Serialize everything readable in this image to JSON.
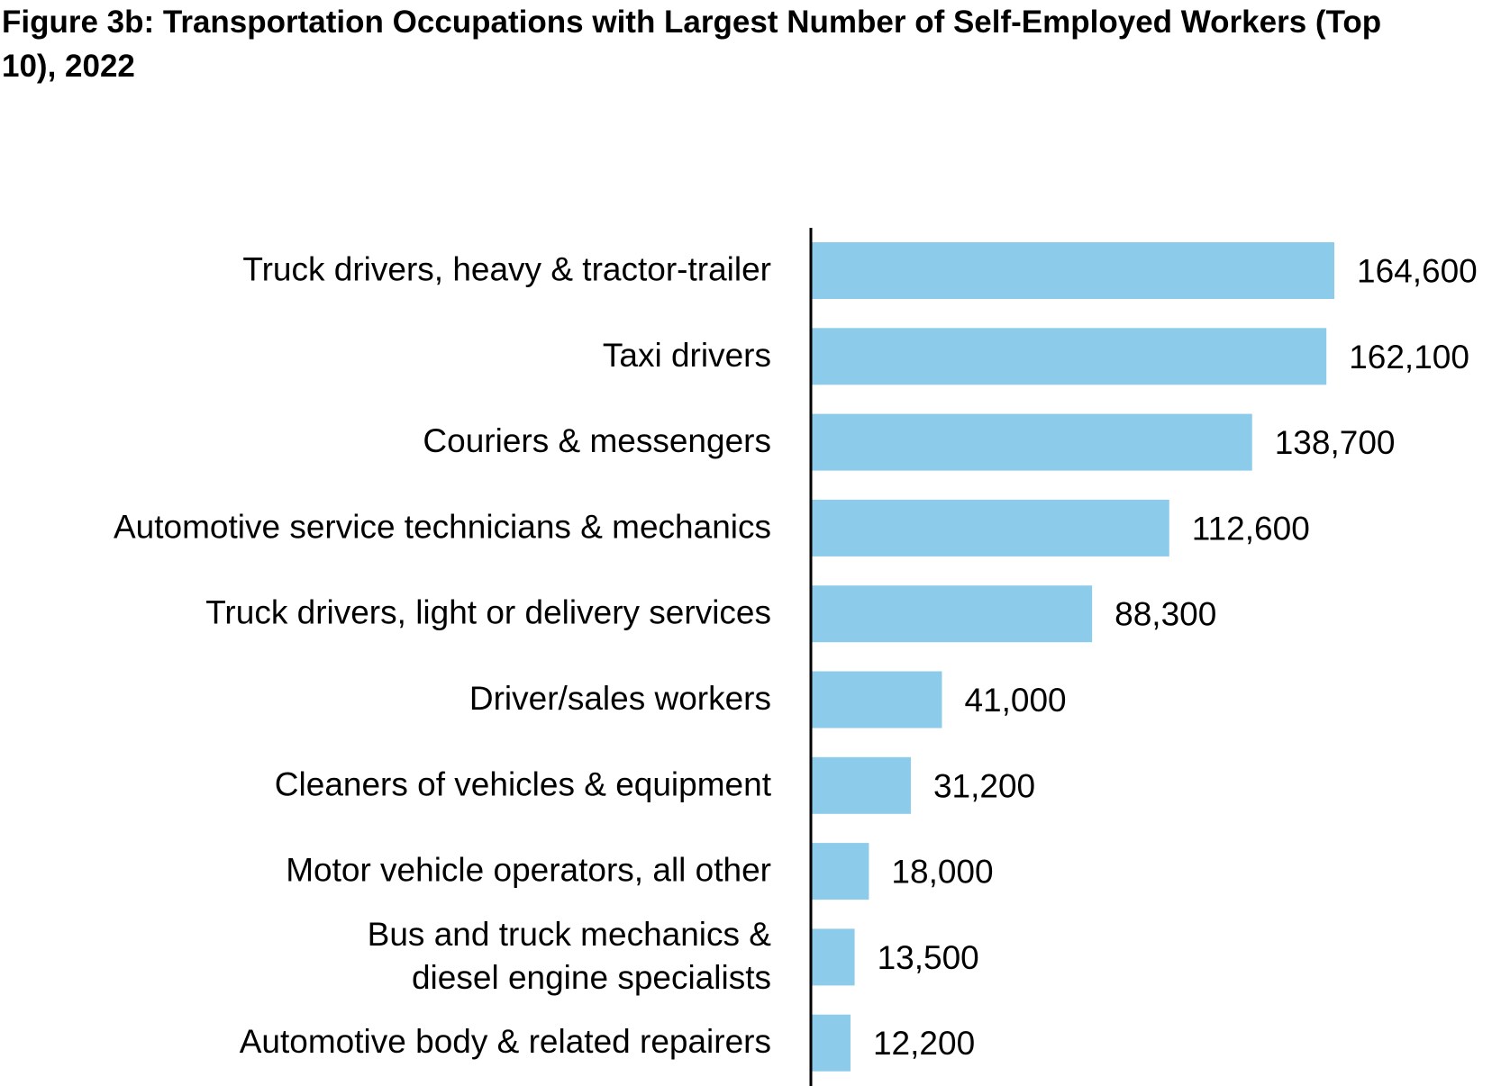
{
  "chart_data": {
    "type": "bar",
    "orientation": "horizontal",
    "title_parts": [
      "Figure 3b: Transportation Occupations with Largest ",
      "Number",
      " of Self-Employed Workers (Top 10), 2022"
    ],
    "categories": [
      [
        "Truck drivers, heavy & tractor-trailer"
      ],
      [
        "Taxi drivers"
      ],
      [
        "Couriers & messengers"
      ],
      [
        "Automotive service technicians & mechanics"
      ],
      [
        "Truck drivers, light or delivery services"
      ],
      [
        "Driver/sales workers"
      ],
      [
        "Cleaners of vehicles & equipment"
      ],
      [
        "Motor vehicle operators, all other"
      ],
      [
        "Bus and truck mechanics &",
        "diesel engine specialists"
      ],
      [
        "Automotive body & related repairers"
      ]
    ],
    "values": [
      164600,
      162100,
      138700,
      112600,
      88300,
      41000,
      31200,
      18000,
      13500,
      12200
    ],
    "data_labels": [
      "164,600",
      "162,100",
      "138,700",
      "112,600",
      "88,300",
      "41,000",
      "31,200",
      "18,000",
      "13,500",
      "12,200"
    ],
    "xlim": [
      0,
      164600
    ],
    "grid": false,
    "colors": {
      "bar": "#8ccbea",
      "axis": "#000000"
    }
  }
}
